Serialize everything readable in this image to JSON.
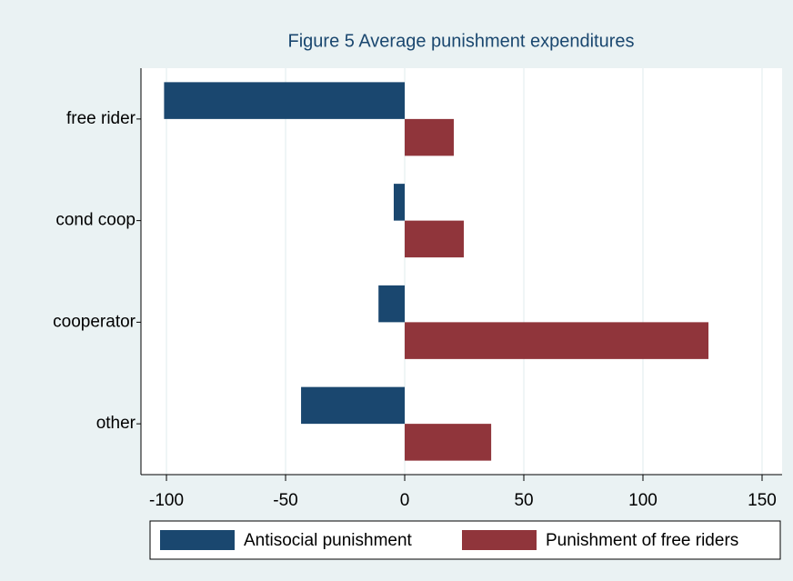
{
  "chart_data": {
    "type": "hbar",
    "title": "Figure 5 Average punishment expenditures",
    "categories": [
      "free rider",
      "cond coop",
      "cooperator",
      "other"
    ],
    "series": [
      {
        "name": "Antisocial punishment",
        "color": "#1a476f",
        "values": [
          -101,
          -4.6,
          -11,
          -43.5
        ]
      },
      {
        "name": "Punishment of free riders",
        "color": "#90353b",
        "values": [
          20.6,
          24.8,
          127.5,
          36.3
        ]
      }
    ],
    "xlim": [
      -110.7,
      158.4
    ],
    "xticks": [
      -100,
      -50,
      0,
      50,
      100,
      150
    ],
    "grid": true,
    "legend": "bottom"
  }
}
